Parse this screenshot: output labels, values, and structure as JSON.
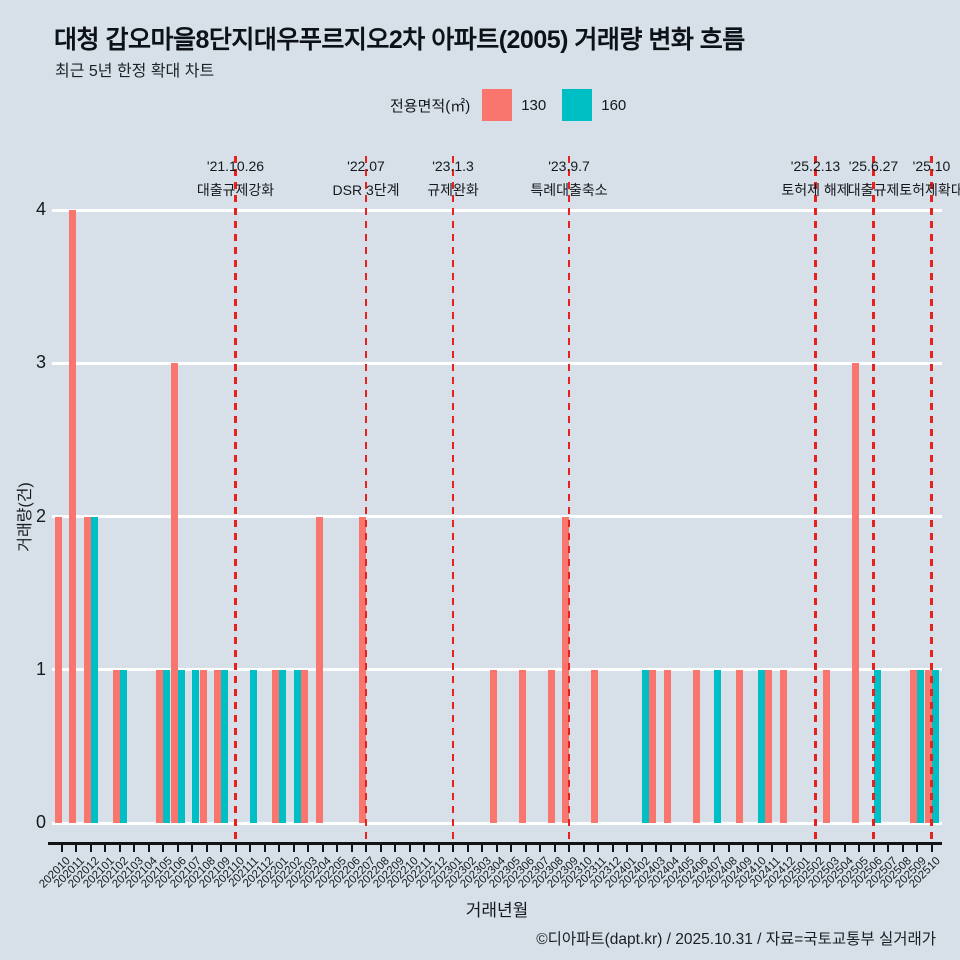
{
  "header": {
    "title": "대청 갑오마을8단지대우푸르지오2차 아파트(2005) 거래량 변화 흐름",
    "subtitle": "최근 5년 한정 확대 차트"
  },
  "legend": {
    "title": "전용면적(㎡)",
    "items": [
      {
        "label": "130",
        "color": "#f8766d"
      },
      {
        "label": "160",
        "color": "#00bfc4"
      }
    ]
  },
  "footer": {
    "credit": "©디아파트(dapt.kr) / 2025.10.31 / 자료=국토교통부 실거래가"
  },
  "colors": {
    "background": "#d7e0e8",
    "bar_130": "#f8766d",
    "bar_160": "#00bfc4",
    "event_line": "#e8211d",
    "grid": "#ffffff",
    "axis": "#111417"
  },
  "chart_data": {
    "type": "bar",
    "title": "대청 갑오마을8단지대우푸르지오2차 아파트(2005) 거래량 변화 흐름",
    "subtitle": "최근 5년 한정 확대 차트",
    "xlabel": "거래년월",
    "ylabel": "거래량(건)",
    "ylim": [
      0,
      4
    ],
    "yticks": [
      0,
      1,
      2,
      3,
      4
    ],
    "grid": true,
    "legend_position": "top",
    "legend_title": "전용면적(㎡)",
    "categories": [
      "202010",
      "202011",
      "202012",
      "202101",
      "202102",
      "202103",
      "202104",
      "202105",
      "202106",
      "202107",
      "202108",
      "202109",
      "202110",
      "202111",
      "202112",
      "202201",
      "202202",
      "202203",
      "202204",
      "202205",
      "202206",
      "202207",
      "202208",
      "202209",
      "202210",
      "202211",
      "202212",
      "202301",
      "202302",
      "202303",
      "202304",
      "202305",
      "202306",
      "202307",
      "202308",
      "202309",
      "202310",
      "202311",
      "202312",
      "202401",
      "202402",
      "202403",
      "202404",
      "202405",
      "202406",
      "202407",
      "202408",
      "202409",
      "202410",
      "202411",
      "202412",
      "202501",
      "202502",
      "202503",
      "202504",
      "202505",
      "202506",
      "202507",
      "202508",
      "202509",
      "202510"
    ],
    "series": [
      {
        "name": "130",
        "color": "#f8766d",
        "values": [
          2,
          4,
          2,
          0,
          1,
          0,
          0,
          1,
          3,
          0,
          1,
          1,
          0,
          0,
          0,
          1,
          0,
          1,
          2,
          0,
          0,
          2,
          0,
          0,
          0,
          0,
          0,
          0,
          0,
          0,
          1,
          0,
          1,
          0,
          1,
          2,
          0,
          1,
          0,
          0,
          0,
          1,
          1,
          0,
          1,
          0,
          0,
          1,
          0,
          1,
          1,
          0,
          0,
          1,
          0,
          3,
          0,
          0,
          0,
          1,
          1
        ]
      },
      {
        "name": "160",
        "color": "#00bfc4",
        "values": [
          0,
          0,
          2,
          0,
          1,
          0,
          0,
          1,
          1,
          1,
          0,
          1,
          0,
          1,
          0,
          1,
          1,
          0,
          0,
          0,
          0,
          0,
          0,
          0,
          0,
          0,
          0,
          0,
          0,
          0,
          0,
          0,
          0,
          0,
          0,
          0,
          0,
          0,
          0,
          0,
          1,
          0,
          0,
          0,
          0,
          1,
          0,
          0,
          1,
          0,
          0,
          0,
          0,
          0,
          0,
          0,
          1,
          0,
          0,
          1,
          1
        ]
      }
    ],
    "events": [
      {
        "x": "202110",
        "date": "'21.10.26",
        "label": "대출규제강화"
      },
      {
        "x": "202207",
        "date": "'22.07",
        "label": "DSR 3단계"
      },
      {
        "x": "202301",
        "date": "'23.1.3",
        "label": "규제완화"
      },
      {
        "x": "202309",
        "date": "'23.9.7",
        "label": "특례대출축소"
      },
      {
        "x": "202502",
        "date": "'25.2.13",
        "label": "토허제 해제"
      },
      {
        "x": "202506",
        "date": "'25.6.27",
        "label": "대출규제"
      },
      {
        "x": "202510",
        "date": "'25.10",
        "label": "토허제확대"
      }
    ]
  }
}
